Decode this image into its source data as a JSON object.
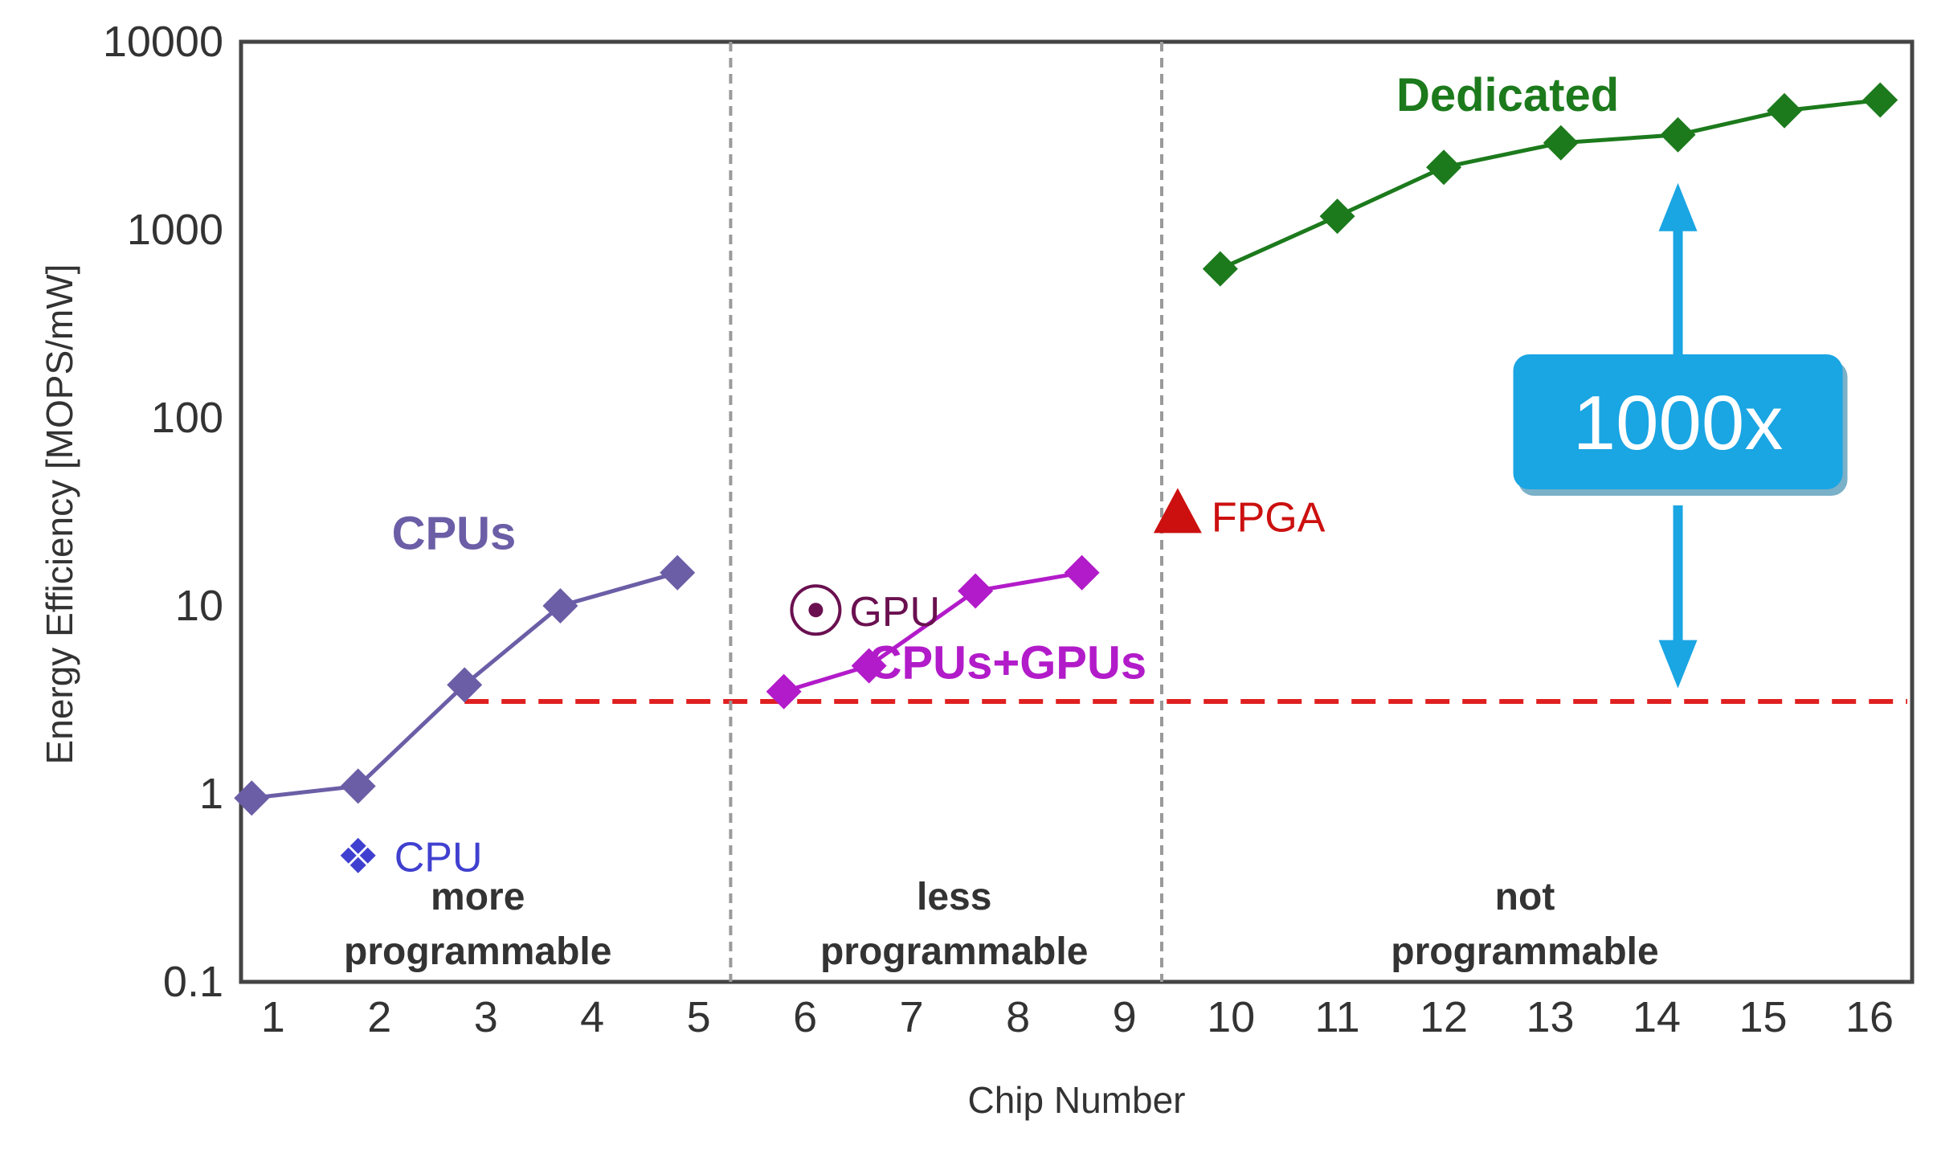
{
  "chart_data": {
    "type": "line",
    "title": "",
    "xlabel": "Chip Number",
    "ylabel": "Energy Efficiency [MOPS/mW]",
    "yscale": "log",
    "xlim": [
      0.7,
      16.4
    ],
    "ylim": [
      0.1,
      10000
    ],
    "x_ticks": [
      "1",
      "2",
      "3",
      "4",
      "5",
      "6",
      "7",
      "8",
      "9",
      "10",
      "11",
      "12",
      "13",
      "14",
      "15",
      "16"
    ],
    "y_ticks": [
      "0.1",
      "1",
      "10",
      "100",
      "1000",
      "10000"
    ],
    "grid": false,
    "regions": [
      {
        "name": "more-programmable",
        "line1": "more",
        "line2": "programmable",
        "x_from": 0.7,
        "x_to": 5.3
      },
      {
        "name": "less-programmable",
        "line1": "less",
        "line2": "programmable",
        "x_from": 5.3,
        "x_to": 9.35
      },
      {
        "name": "not-programmable",
        "line1": "not",
        "line2": "programmable",
        "x_from": 9.35,
        "x_to": 16.4
      }
    ],
    "series": [
      {
        "name": "CPUs",
        "label": "CPUs",
        "color": "#6b5ea6",
        "x": [
          0.8,
          1.8,
          2.8,
          3.7,
          4.8
        ],
        "y": [
          0.95,
          1.1,
          3.8,
          10,
          15
        ]
      },
      {
        "name": "CPUs+GPUs",
        "label": "CPUs+GPUs",
        "color": "#b21bc9",
        "x": [
          5.8,
          6.6,
          7.6,
          8.6
        ],
        "y": [
          3.5,
          4.8,
          12,
          15
        ]
      },
      {
        "name": "Dedicated",
        "label": "Dedicated",
        "color": "#1c7a1c",
        "x": [
          9.9,
          11,
          12,
          13.1,
          14.2,
          15.2,
          16.1
        ],
        "y": [
          620,
          1180,
          2150,
          2900,
          3200,
          4300,
          4900
        ]
      }
    ],
    "points": [
      {
        "name": "CPU",
        "label": "CPU",
        "x": 1.8,
        "y": 0.47,
        "color": "#4040d0",
        "marker": "four-diamond"
      },
      {
        "name": "GPU",
        "label": "GPU",
        "x": 6.1,
        "y": 9.5,
        "color": "#6a1050",
        "marker": "circled-dot"
      },
      {
        "name": "FPGA",
        "label": "FPGA",
        "x": 9.5,
        "y": 28,
        "color": "#cc1010",
        "marker": "triangle"
      }
    ],
    "reference_line": {
      "y": 3.1,
      "x_from": 2.8,
      "x_to": 16.4,
      "color": "#e02020",
      "style": "dashed"
    },
    "annotation": {
      "text": "1000x",
      "x": 14.2,
      "y_from": 3.3,
      "y_to": 2900,
      "color": "#1aa5e3"
    }
  }
}
